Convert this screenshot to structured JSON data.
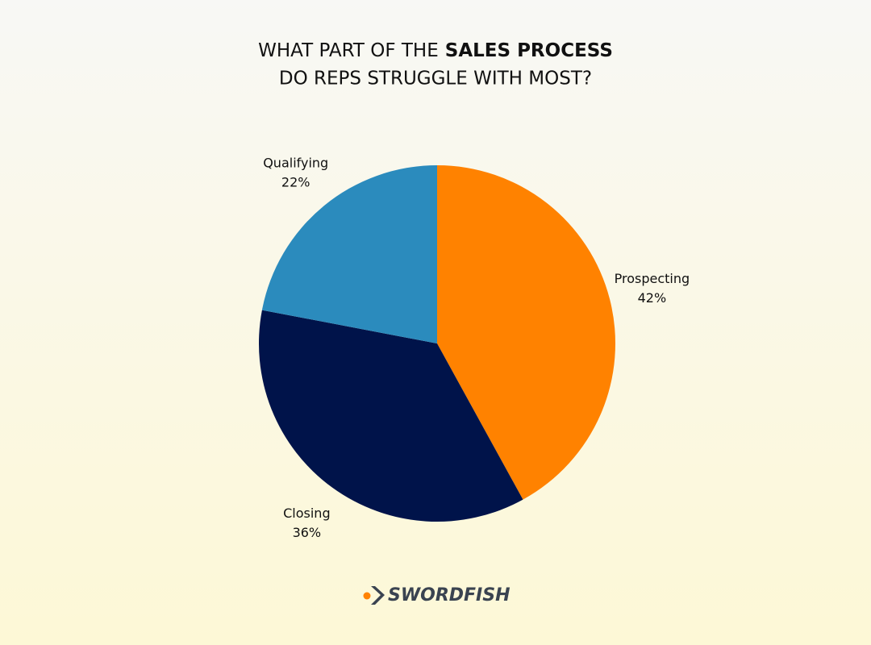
{
  "chart_data": {
    "type": "pie",
    "title_parts": [
      "WHAT PART OF THE",
      "SALES PROCESS",
      "DO REPS STRUGGLE WITH MOST?"
    ],
    "categories": [
      "Prospecting",
      "Closing",
      "Qualifying"
    ],
    "values": [
      42,
      36,
      22
    ],
    "value_labels": [
      "42%",
      "36%",
      "22%"
    ],
    "colors": [
      "#ff8200",
      "#00134a",
      "#2b8bbd"
    ]
  },
  "brand": "SWORDFISH"
}
